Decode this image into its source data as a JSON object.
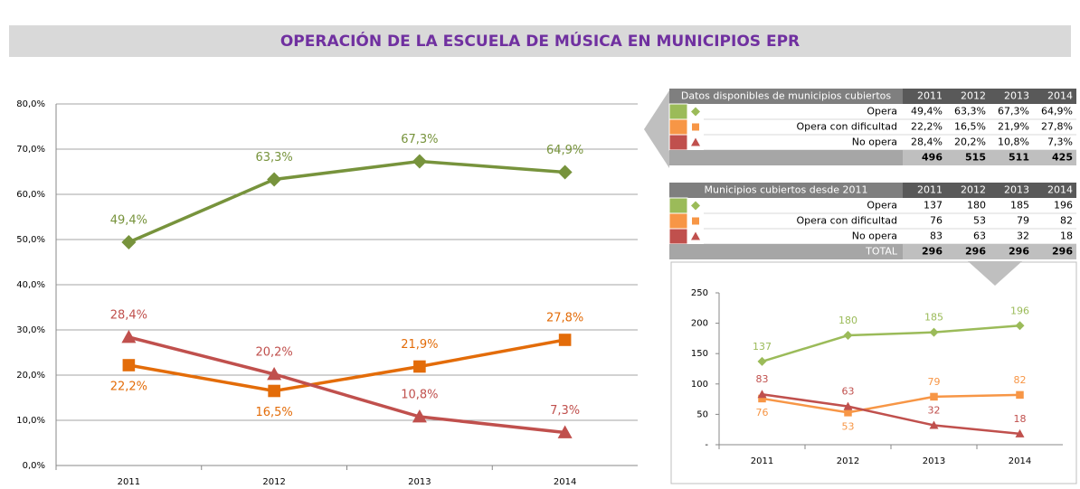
{
  "title": "OPERACIÓN DE LA ESCUELA DE MÚSICA EN MUNICIPIOS EPR",
  "chart_data": [
    {
      "type": "line",
      "categories": [
        "2011",
        "2012",
        "2013",
        "2014"
      ],
      "ylim": [
        0,
        80
      ],
      "yticks": [
        {
          "value": 0,
          "label": "0,0%"
        },
        {
          "value": 10,
          "label": "10,0%"
        },
        {
          "value": 20,
          "label": "20,0%"
        },
        {
          "value": 30,
          "label": "30,0%"
        },
        {
          "value": 40,
          "label": "40,0%"
        },
        {
          "value": 50,
          "label": "50,0%"
        },
        {
          "value": 60,
          "label": "60,0%"
        },
        {
          "value": 70,
          "label": "70,0%"
        },
        {
          "value": 80,
          "label": "80,0%"
        }
      ],
      "grid": true,
      "series": [
        {
          "color": "#77933c",
          "marker": "diamond",
          "values": [
            49.4,
            63.3,
            67.3,
            64.9
          ],
          "value_labels": [
            "49,4%",
            "63,3%",
            "67,3%",
            "64,9%"
          ]
        },
        {
          "color": "#e36c09",
          "marker": "square",
          "values": [
            22.2,
            16.5,
            21.9,
            27.8
          ],
          "value_labels": [
            "22,2%",
            "16,5%",
            "21,9%",
            "27,8%"
          ]
        },
        {
          "color": "#c0504d",
          "marker": "triangle",
          "values": [
            28.4,
            20.2,
            10.8,
            7.3
          ],
          "value_labels": [
            "28,4%",
            "20,2%",
            "10,8%",
            "7,3%"
          ]
        }
      ]
    },
    {
      "type": "line",
      "categories": [
        "2011",
        "2012",
        "2013",
        "2014"
      ],
      "ylim": [
        0,
        250
      ],
      "yticks": [
        {
          "value": 0,
          "label": "-"
        },
        50,
        100,
        150,
        200,
        250
      ],
      "grid": false,
      "series": [
        {
          "color": "#9bbb59",
          "marker": "diamond",
          "values": [
            137,
            180,
            185,
            196
          ]
        },
        {
          "color": "#f79646",
          "marker": "square",
          "values": [
            76,
            53,
            79,
            82
          ]
        },
        {
          "color": "#c0504d",
          "marker": "triangle",
          "values": [
            83,
            63,
            32,
            18
          ]
        }
      ]
    }
  ],
  "tables": [
    {
      "header": [
        "Datos disponibles de municipios cubiertos",
        "2011",
        "2012",
        "2013",
        "2014"
      ],
      "row_colors": [
        "#9bbb59",
        "#f79646",
        "#c0504d"
      ],
      "rows": [
        [
          "Opera",
          "49,4%",
          "63,3%",
          "67,3%",
          "64,9%"
        ],
        [
          "Opera con dificultad",
          "22,2%",
          "16,5%",
          "21,9%",
          "27,8%"
        ],
        [
          "No opera",
          "28,4%",
          "20,2%",
          "10,8%",
          "7,3%"
        ]
      ],
      "totals": [
        "496",
        "515",
        "511",
        "425"
      ]
    },
    {
      "header": [
        "Municipios cubiertos desde 2011",
        "2011",
        "2012",
        "2013",
        "2014"
      ],
      "row_colors": [
        "#9bbb59",
        "#f79646",
        "#c0504d"
      ],
      "rows": [
        [
          "Opera",
          "137",
          "180",
          "185",
          "196"
        ],
        [
          "Opera con dificultad",
          "76",
          "53",
          "79",
          "82"
        ],
        [
          "No opera",
          "83",
          "63",
          "32",
          "18"
        ]
      ],
      "total_label": "TOTAL",
      "totals": [
        "296",
        "296",
        "296",
        "296"
      ]
    }
  ]
}
